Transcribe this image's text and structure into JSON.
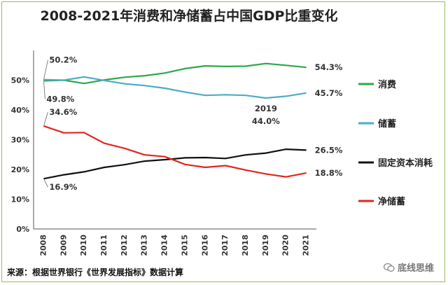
{
  "title": "2008-2021年消费和净储蓄占中国GDP比重变化",
  "source": "来源：根据世界银行《世界发展指标》数据计算",
  "watermark": {
    "icon": "wechat-icon",
    "text": "底线思维"
  },
  "chart_data": {
    "type": "line",
    "title": "2008-2021年消费和净储蓄占中国GDP比重变化",
    "xlabel": "",
    "ylabel": "",
    "x": [
      "2008",
      "2009",
      "2010",
      "2011",
      "2012",
      "2013",
      "2014",
      "2015",
      "2016",
      "2017",
      "2018",
      "2019",
      "2020",
      "2021"
    ],
    "ylim": [
      0,
      60
    ],
    "yticks": [
      "0%",
      "10%",
      "20%",
      "30%",
      "40%",
      "50%"
    ],
    "grid": false,
    "legend_placement": "right",
    "series": [
      {
        "name": "消费",
        "color": "#2ca84a",
        "values": [
          49.8,
          50.0,
          48.9,
          50.1,
          51.0,
          51.5,
          52.4,
          53.9,
          54.8,
          54.6,
          54.7,
          55.6,
          55.0,
          54.3
        ]
      },
      {
        "name": "储蓄",
        "color": "#4bacc6",
        "values": [
          50.2,
          50.0,
          51.1,
          49.9,
          48.8,
          48.2,
          47.3,
          46.0,
          44.9,
          45.1,
          44.9,
          44.0,
          44.6,
          45.7
        ]
      },
      {
        "name": "固定资本消耗",
        "color": "#111111",
        "values": [
          16.9,
          18.2,
          19.2,
          20.7,
          21.6,
          22.8,
          23.3,
          23.9,
          24.0,
          23.7,
          24.9,
          25.5,
          26.8,
          26.5
        ]
      },
      {
        "name": "净储蓄",
        "color": "#e3261c",
        "values": [
          34.6,
          32.3,
          32.4,
          28.8,
          27.1,
          24.9,
          24.3,
          21.7,
          20.7,
          21.3,
          19.8,
          18.5,
          17.5,
          18.8
        ]
      }
    ],
    "annotations": [
      {
        "text": "50.2%",
        "series": 1,
        "index": 0
      },
      {
        "text": "49.8%",
        "series": 0,
        "index": 0
      },
      {
        "text": "34.6%",
        "series": 3,
        "index": 0
      },
      {
        "text": "16.9%",
        "series": 2,
        "index": 0
      },
      {
        "text": "54.3%",
        "series": 0,
        "index": 13
      },
      {
        "text": "45.7%",
        "series": 1,
        "index": 13
      },
      {
        "text": "26.5%",
        "series": 2,
        "index": 13
      },
      {
        "text": "18.8%",
        "series": 3,
        "index": 13
      },
      {
        "text": "2019",
        "series": 1,
        "index": 11
      },
      {
        "text": "44.0%",
        "series": 1,
        "index": 11
      }
    ]
  }
}
